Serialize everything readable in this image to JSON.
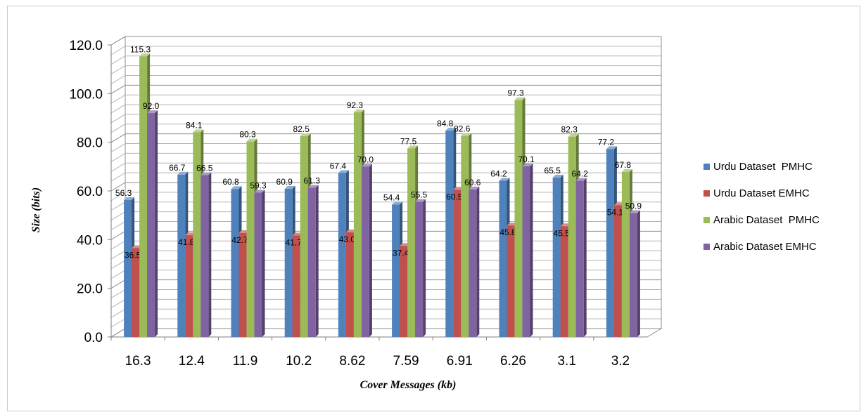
{
  "chart_data": {
    "type": "bar",
    "xlabel": "Cover Messages (kb)",
    "ylabel": "Size (bits)",
    "ylim": [
      0,
      120
    ],
    "y_ticks": [
      "0.0",
      "20.0",
      "40.0",
      "60.0",
      "80.0",
      "100.0",
      "120.0"
    ],
    "grid": true,
    "legend_position": "right",
    "categories": [
      "16.3",
      "12.4",
      "11.9",
      "10.2",
      "8.62",
      "7.59",
      "6.91",
      "6.26",
      "3.1",
      "3.2"
    ],
    "series": [
      {
        "name": "Urdu Dataset  PMHC",
        "color": "#4f81bd",
        "values": [
          56.3,
          66.7,
          60.8,
          60.9,
          67.4,
          54.4,
          84.8,
          64.2,
          65.5,
          77.2
        ]
      },
      {
        "name": "Urdu Dataset EMHC",
        "color": "#c0504d",
        "values": [
          36.5,
          41.8,
          42.7,
          41.7,
          43.0,
          37.4,
          60.5,
          45.8,
          45.5,
          54.1
        ]
      },
      {
        "name": "Arabic Dataset  PMHC",
        "color": "#9bbb59",
        "values": [
          115.3,
          84.1,
          80.3,
          82.5,
          92.3,
          77.5,
          82.6,
          97.3,
          82.3,
          67.8
        ]
      },
      {
        "name": "Arabic Dataset EMHC",
        "color": "#8064a2",
        "values": [
          92.0,
          66.5,
          59.3,
          61.3,
          70.0,
          55.5,
          60.6,
          70.1,
          64.2,
          50.9
        ]
      }
    ]
  }
}
